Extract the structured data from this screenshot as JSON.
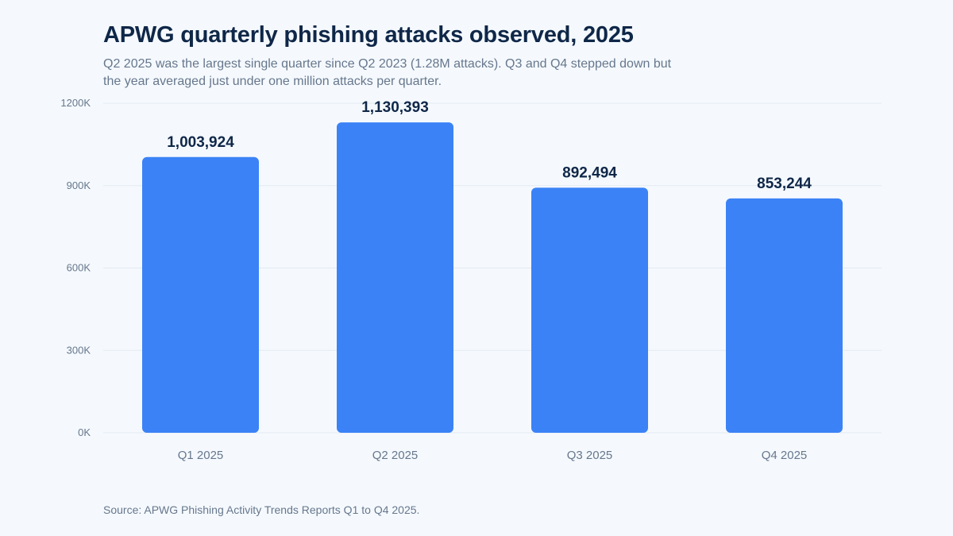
{
  "title": "APWG quarterly phishing attacks observed, 2025",
  "subtitle": "Q2 2025 was the largest single quarter since Q2 2023 (1.28M attacks). Q3 and Q4 stepped down but the year averaged just under one million attacks per quarter.",
  "source": "Source: APWG Phishing Activity Trends Reports Q1 to Q4 2025.",
  "colors": {
    "bar": "#3b82f6",
    "grid": "#e3e9f1",
    "value_label": "#0f2748",
    "axis_text": "#66778c"
  },
  "chart_data": {
    "type": "bar",
    "categories": [
      "Q1 2025",
      "Q2 2025",
      "Q3 2025",
      "Q4 2025"
    ],
    "values": [
      1003924,
      1130393,
      892494,
      853244
    ],
    "value_labels": [
      "1,003,924",
      "1,130,393",
      "892,494",
      "853,244"
    ],
    "y_ticks": [
      0,
      300000,
      600000,
      900000,
      1200000
    ],
    "y_tick_labels": [
      "0K",
      "300K",
      "600K",
      "900K",
      "1200K"
    ],
    "ylim": [
      0,
      1200000
    ],
    "grid": true,
    "legend": "none"
  }
}
